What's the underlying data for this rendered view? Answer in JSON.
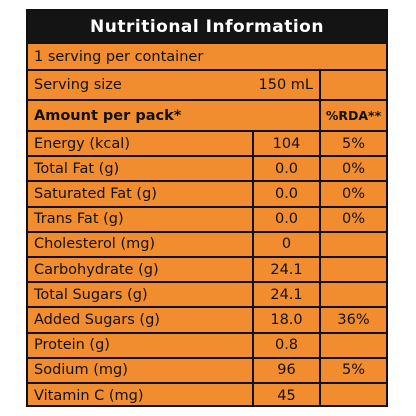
{
  "label": {
    "title": "Nutritional Information",
    "servings_per_container": "1 serving per container",
    "serving_size_label": "Serving size",
    "serving_size_value": "150 mL",
    "amount_header": "Amount per pack*",
    "rda_header": "%RDA**",
    "nutrients": [
      {
        "name": "Energy (kcal)",
        "amount": "104",
        "rda": "5%"
      },
      {
        "name": "Total Fat (g)",
        "amount": "0.0",
        "rda": "0%"
      },
      {
        "name": "Saturated Fat (g)",
        "amount": "0.0",
        "rda": "0%"
      },
      {
        "name": "Trans Fat (g)",
        "amount": "0.0",
        "rda": "0%"
      },
      {
        "name": "Cholesterol (mg)",
        "amount": "0",
        "rda": ""
      },
      {
        "name": "Carbohydrate (g)",
        "amount": "24.1",
        "rda": ""
      },
      {
        "name": "Total Sugars (g)",
        "amount": "24.1",
        "rda": ""
      },
      {
        "name": "Added Sugars (g)",
        "amount": "18.0",
        "rda": "36%"
      },
      {
        "name": "Protein (g)",
        "amount": "0.8",
        "rda": ""
      },
      {
        "name": "Sodium (mg)",
        "amount": "96",
        "rda": "5%"
      },
      {
        "name": "Vitamin C (mg)",
        "amount": "45",
        "rda": ""
      }
    ],
    "colors": {
      "background": "#f18d2f",
      "title_bar": "#141414",
      "text": "#111111"
    }
  }
}
